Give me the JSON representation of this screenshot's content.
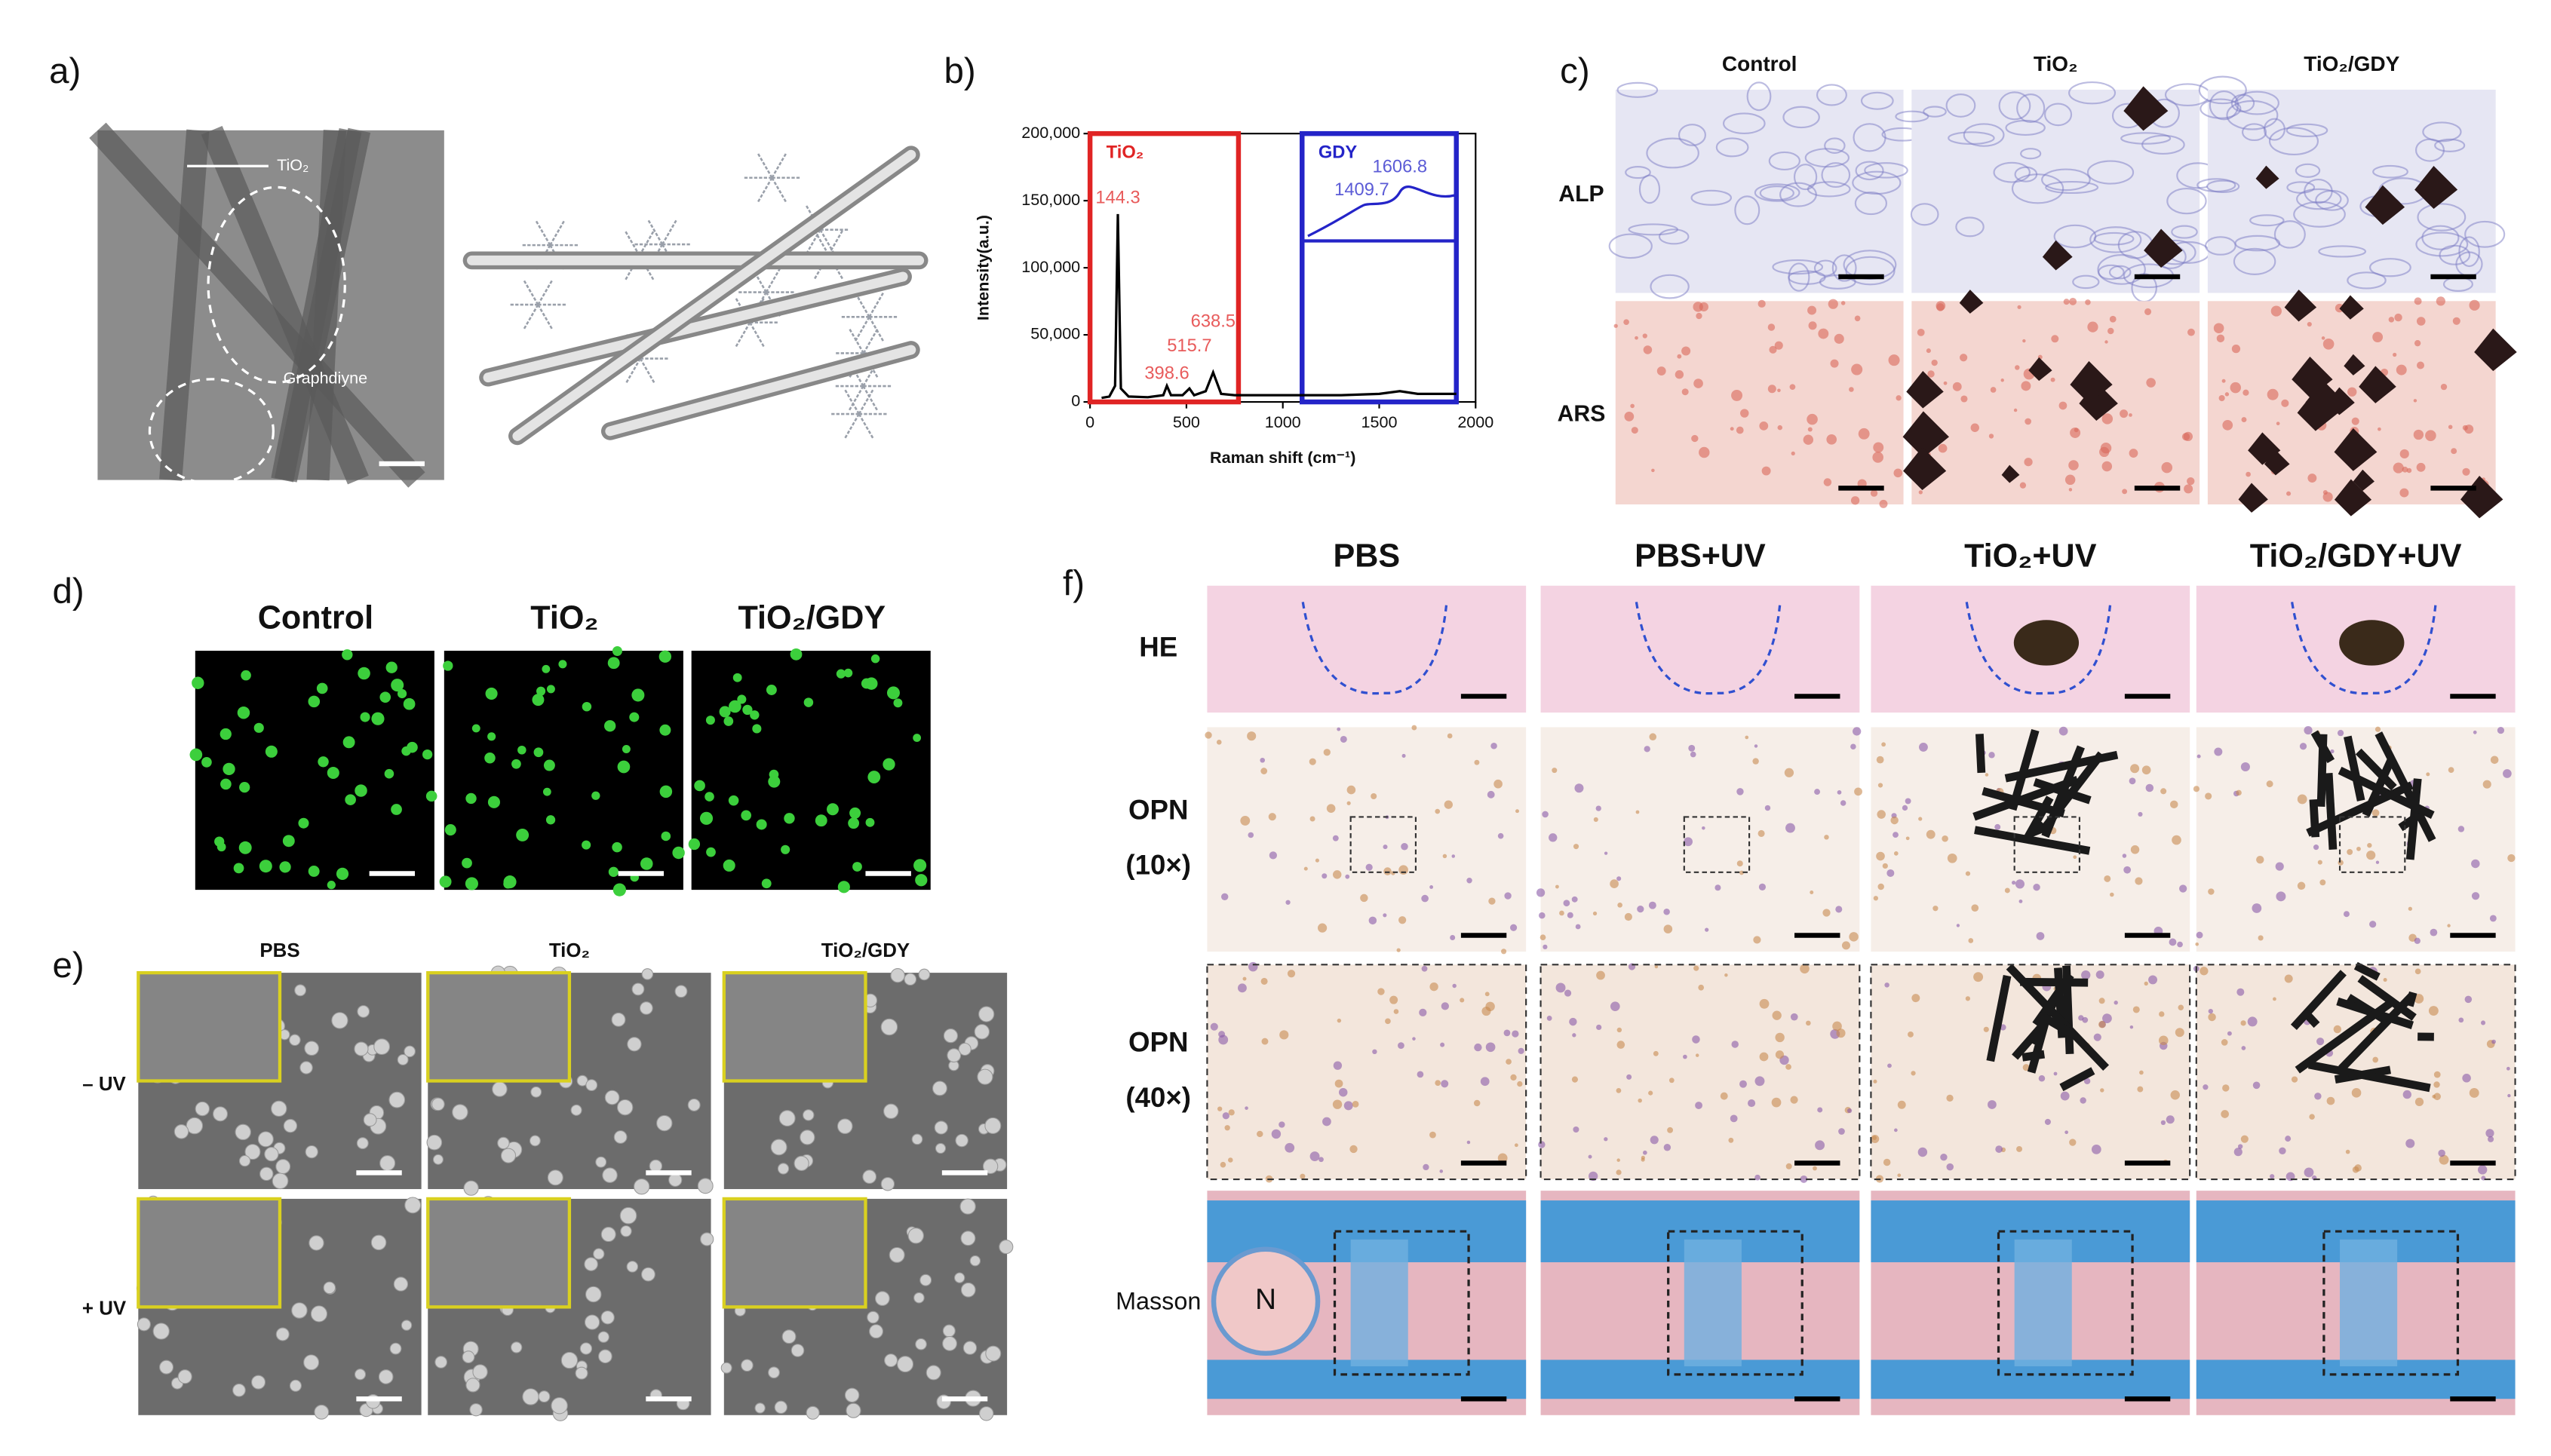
{
  "chart_data": {
    "type": "line",
    "label": "b)",
    "x_label": "Raman shift (cm⁻¹)",
    "y_label": "Intensity(a.u.)",
    "xlim": [
      0,
      2000
    ],
    "ylim": [
      0,
      200000
    ],
    "xticks": [
      0,
      500,
      1000,
      1500,
      2000
    ],
    "yticks": [
      0,
      {
        "value": 50000,
        "label": "50,000"
      },
      {
        "value": 100000,
        "label": "100,000"
      },
      {
        "value": 150000,
        "label": "150,000"
      },
      {
        "value": 200000,
        "label": "200,000"
      }
    ],
    "x": [
      60,
      100,
      130,
      144.3,
      160,
      200,
      300,
      380,
      398.6,
      420,
      480,
      515.7,
      540,
      600,
      638.5,
      680,
      750,
      1000,
      1300,
      1500,
      1606.8,
      1700,
      1900
    ],
    "values": [
      3000,
      4000,
      12000,
      140000,
      10000,
      4000,
      3500,
      5000,
      12000,
      5000,
      5000,
      10000,
      5000,
      8000,
      22000,
      6000,
      5000,
      5000,
      5000,
      6000,
      8000,
      6000,
      6000
    ],
    "color": "#000000",
    "regions": [
      {
        "label": "TiO₂",
        "color": "#e02424",
        "xlim": [
          0,
          770
        ]
      },
      {
        "label": "GDY",
        "color": "#2424c8",
        "xlim": [
          1100,
          1900
        ]
      }
    ],
    "peaks": [
      144.3,
      398.6,
      515.7,
      638.5,
      1409.7,
      1606.8
    ]
  },
  "panels": {
    "a": {
      "label": "a)",
      "annotations": [
        "TiO₂",
        "Graphdiyne"
      ]
    },
    "c": {
      "label": "c)",
      "columns": [
        "Control",
        "TiO₂",
        "TiO₂/GDY"
      ],
      "rows": [
        "ALP",
        "ARS"
      ]
    },
    "d": {
      "label": "d)",
      "columns": [
        "Control",
        "TiO₂",
        "TiO₂/GDY"
      ]
    },
    "e": {
      "label": "e)",
      "columns": [
        "PBS",
        "TiO₂",
        "TiO₂/GDY"
      ],
      "rows": [
        "– UV",
        "+ UV"
      ]
    },
    "f": {
      "label": "f)",
      "columns": [
        "PBS",
        "PBS+UV",
        "TiO₂+UV",
        "TiO₂/GDY+UV"
      ],
      "rows": [
        [
          "HE"
        ],
        [
          "OPN",
          "(10×)"
        ],
        [
          "OPN",
          "(40×)"
        ],
        [
          "Masson"
        ]
      ],
      "annotations": [
        "N"
      ]
    }
  }
}
